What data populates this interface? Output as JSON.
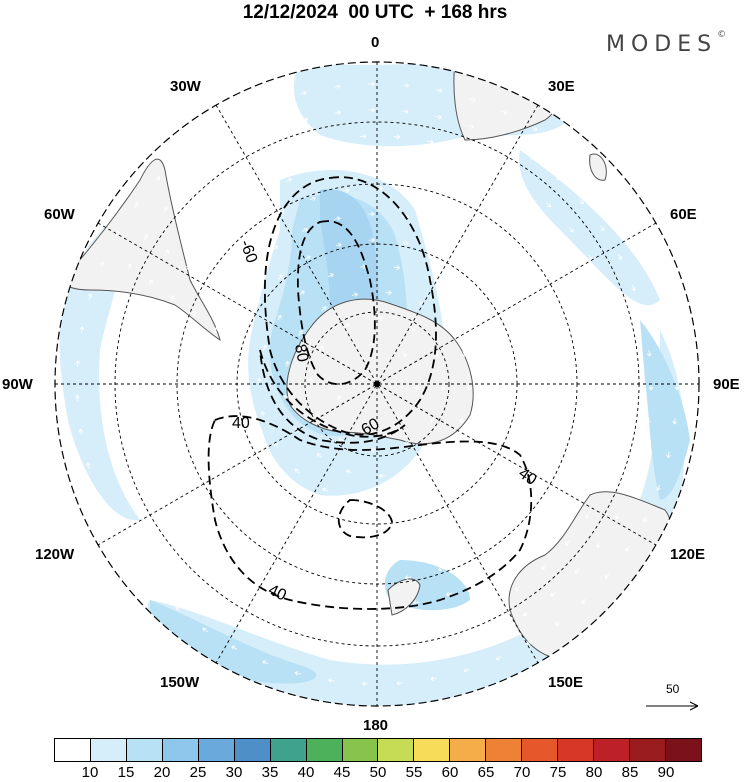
{
  "header": {
    "title": "12/12/2024  00 UTC  + 168 hrs",
    "brand": "MODES",
    "brand_mark": "©"
  },
  "map": {
    "projection": "south-polar-stereographic",
    "longitude_labels": [
      "0",
      "30E",
      "60E",
      "90E",
      "120E",
      "150E",
      "180",
      "150W",
      "120W",
      "90W",
      "60W",
      "30W"
    ],
    "contour_labels": [
      "-60",
      "80",
      "60",
      "40",
      "40",
      "40"
    ],
    "colors": {
      "land": "#f2f2f2",
      "coast": "#555555",
      "contour": "#000000",
      "grid": "#000000",
      "vectors": "#ffffff"
    },
    "shading_levels_present": [
      15,
      20,
      25
    ]
  },
  "reference_vector": {
    "label": "50"
  },
  "colorbar": {
    "ticks": [
      "10",
      "15",
      "20",
      "25",
      "30",
      "35",
      "40",
      "45",
      "50",
      "55",
      "60",
      "65",
      "70",
      "75",
      "80",
      "85",
      "90"
    ],
    "colors": [
      "#ffffff",
      "#d6eefa",
      "#b9e1f6",
      "#8ec6ec",
      "#6aa9dc",
      "#4f8fc8",
      "#3ea28c",
      "#4db05a",
      "#88c44c",
      "#c6dc55",
      "#f7dc5a",
      "#f4ad49",
      "#ef8136",
      "#e6572c",
      "#d63727",
      "#bd2127",
      "#9a1c1f",
      "#7c1219"
    ]
  }
}
